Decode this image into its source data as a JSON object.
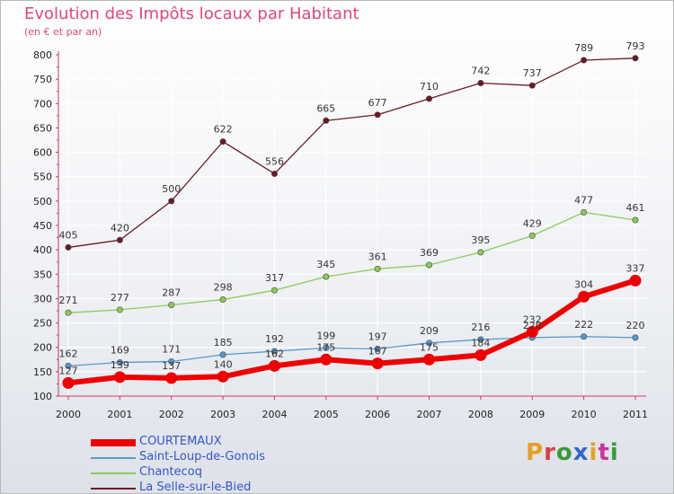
{
  "title": "Evolution des Impôts locaux par Habitant",
  "subtitle": "(en € et par an)",
  "logo": "Proxiti",
  "colors": {
    "title": "#e0457c",
    "legend_text": "#3355cc",
    "axis": "#cc3366",
    "grid": "#ffffff"
  },
  "chart_data": {
    "type": "line",
    "x": [
      2000,
      2001,
      2002,
      2003,
      2004,
      2005,
      2006,
      2007,
      2008,
      2009,
      2010,
      2011
    ],
    "ylim": [
      100,
      800
    ],
    "yticks": [
      100,
      150,
      200,
      250,
      300,
      350,
      400,
      450,
      500,
      550,
      600,
      650,
      700,
      750,
      800
    ],
    "grid": true,
    "legend_placement": "bottom-left",
    "series": [
      {
        "name": "COURTEMAUX",
        "color": "#ee0000",
        "values": [
          127,
          139,
          137,
          140,
          162,
          175,
          167,
          175,
          184,
          232,
          304,
          337
        ],
        "labels": [
          "127",
          "139",
          "137",
          "140",
          "162",
          "175",
          "167",
          "175",
          "184",
          "232",
          "304",
          "337"
        ]
      },
      {
        "name": "Saint-Loup-de-Gonois",
        "color": "#5599cc",
        "values": [
          162,
          169,
          171,
          185,
          192,
          199,
          197,
          209,
          216,
          220,
          222,
          220
        ],
        "labels": [
          "162",
          "169",
          "171",
          "185",
          "192",
          "199",
          "197",
          "209",
          "216",
          "220",
          "222",
          "220"
        ]
      },
      {
        "name": "Chantecoq",
        "color": "#88cc55",
        "values": [
          271,
          277,
          287,
          298,
          317,
          345,
          361,
          369,
          395,
          429,
          477,
          461
        ],
        "labels": [
          "271",
          "277",
          "287",
          "298",
          "317",
          "345",
          "361",
          "369",
          "395",
          "429",
          "477",
          "461"
        ]
      },
      {
        "name": "La Selle-sur-le-Bied",
        "color": "#6b1a24",
        "values": [
          405,
          420,
          500,
          622,
          556,
          665,
          677,
          710,
          742,
          737,
          789,
          793
        ],
        "labels": [
          "405",
          "420",
          "500",
          "622",
          "556",
          "665",
          "677",
          "710",
          "742",
          "737",
          "789",
          "793"
        ]
      }
    ]
  }
}
